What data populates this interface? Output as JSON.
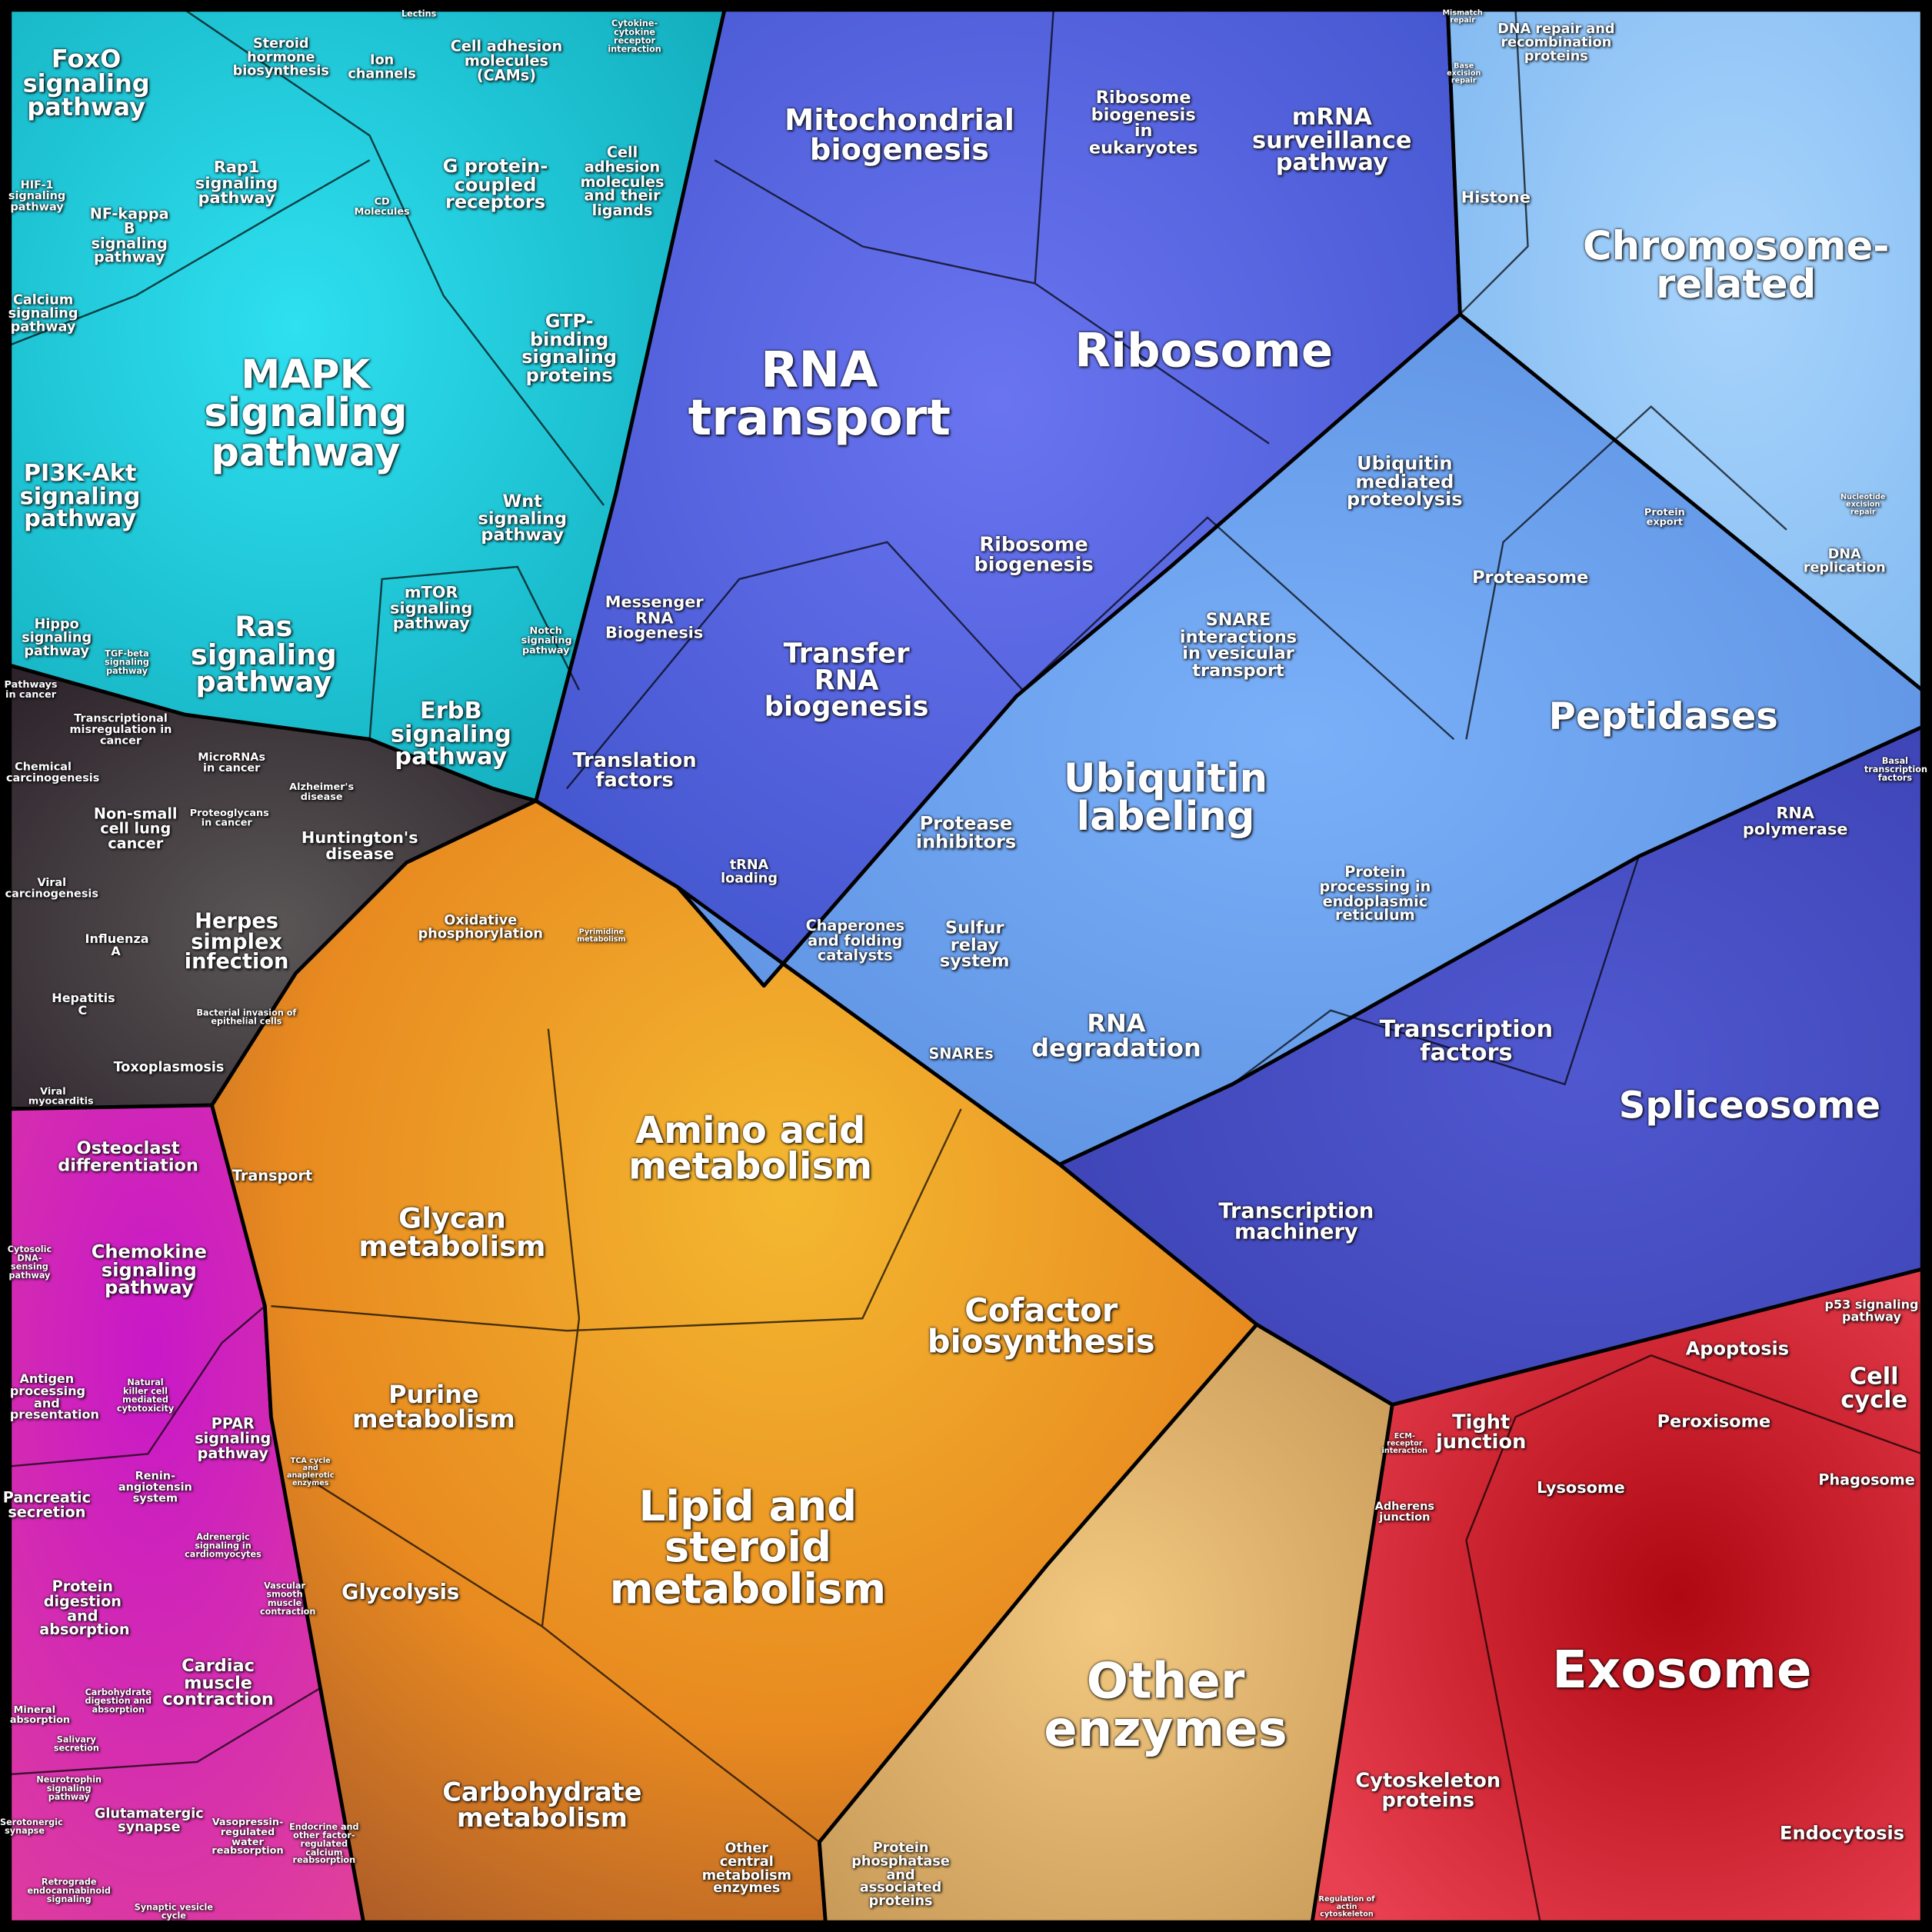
{
  "labels": [
    "FoxO signaling pathway",
    "Steroid hormone biosynthesis",
    "Lectins",
    "Ion channels",
    "Cell adhesion molecules (CAMs)",
    "Cytokine-cytokine receptor interaction",
    "Rap1 signaling pathway",
    "HIF-1 signaling pathway",
    "NF-kappa B signaling pathway",
    "G protein-coupled receptors",
    "Cell adhesion molecules and their ligands",
    "CD Molecules",
    "Calcium signaling pathway",
    "GTP-binding signaling proteins",
    "MAPK signaling pathway",
    "PI3K-Akt signaling pathway",
    "Wnt signaling pathway",
    "mTOR signaling pathway",
    "Ras signaling pathway",
    "Hippo signaling pathway",
    "TGF-beta signaling pathway",
    "Notch signaling pathway",
    "ErbB signaling pathway",
    "Pathways in cancer",
    "Transcriptional misregulation in cancer",
    "Chemical carcinogenesis",
    "MicroRNAs in cancer",
    "Non-small cell lung cancer",
    "Proteoglycans in cancer",
    "Alzheimer's disease",
    "Huntington's disease",
    "Viral carcinogenesis",
    "Herpes simplex infection",
    "Influenza A",
    "Hepatitis C",
    "Bacterial invasion of epithelial cells",
    "Toxoplasmosis",
    "Viral myocarditis",
    "Osteoclast differentiation",
    "Transport",
    "Chemokine signaling pathway",
    "Cytosolic DNA-sensing pathway",
    "Antigen processing and presentation",
    "Natural killer cell mediated cytotoxicity",
    "PPAR signaling pathway",
    "Pancreatic secretion",
    "Renin-angiotensin system",
    "Adrenergic signaling in cardiomyocytes",
    "Protein digestion and absorption",
    "Vascular smooth muscle contraction",
    "Cardiac muscle contraction",
    "Carbohydrate digestion and absorption",
    "Mineral absorption",
    "Salivary secretion",
    "Neurotrophin signaling pathway",
    "Glutamatergic synapse",
    "Vasopressin-regulated water reabsorption",
    "Endocrine and other factor-regulated calcium reabsorption",
    "Serotonergic synapse",
    "Retrograde endocannabinoid signaling",
    "Synaptic vesicle cycle",
    "Oxidative phosphorylation",
    "Pyrimidine metabolism",
    "Amino acid metabolism",
    "Glycan metabolism",
    "Cofactor biosynthesis",
    "Purine metabolism",
    "TCA cycle and anaplerotic enzymes",
    "Lipid and steroid metabolism",
    "Glycolysis",
    "Carbohydrate metabolism",
    "Other central metabolism enzymes",
    "Other enzymes",
    "Protein phosphatase and associated proteins",
    "Mitochondrial biogenesis",
    "Ribosome biogenesis in eukaryotes",
    "mRNA surveillance pathway",
    "RNA transport",
    "Ribosome",
    "Ribosome biogenesis",
    "Messenger RNA Biogenesis",
    "Transfer RNA biogenesis",
    "Translation factors",
    "tRNA loading",
    "Histone",
    "DNA repair and recombination proteins",
    "Mismatch repair",
    "Base excision repair",
    "Chromosome-related",
    "Ubiquitin mediated proteolysis",
    "Protein export",
    "Nucleotide excision repair",
    "DNA replication",
    "Proteasome",
    "SNARE interactions in vesicular transport",
    "Peptidases",
    "Ubiquitin labeling",
    "Protease inhibitors",
    "Protein processing in endoplasmic reticulum",
    "Chaperones and folding catalysts",
    "Sulfur relay system",
    "SNAREs",
    "RNA degradation",
    "Basal transcription factors",
    "RNA polymerase",
    "Transcription factors",
    "Spliceosome",
    "Transcription machinery",
    "p53 signaling pathway",
    "Apoptosis",
    "Cell cycle",
    "Tight junction",
    "Peroxisome",
    "Lysosome",
    "Phagosome",
    "Adherens junction",
    "Exosome",
    "Cytoskeleton proteins",
    "Endocytosis",
    "Regulation of actin cytoskeleton",
    "ECM-receptor interaction"
  ]
}
